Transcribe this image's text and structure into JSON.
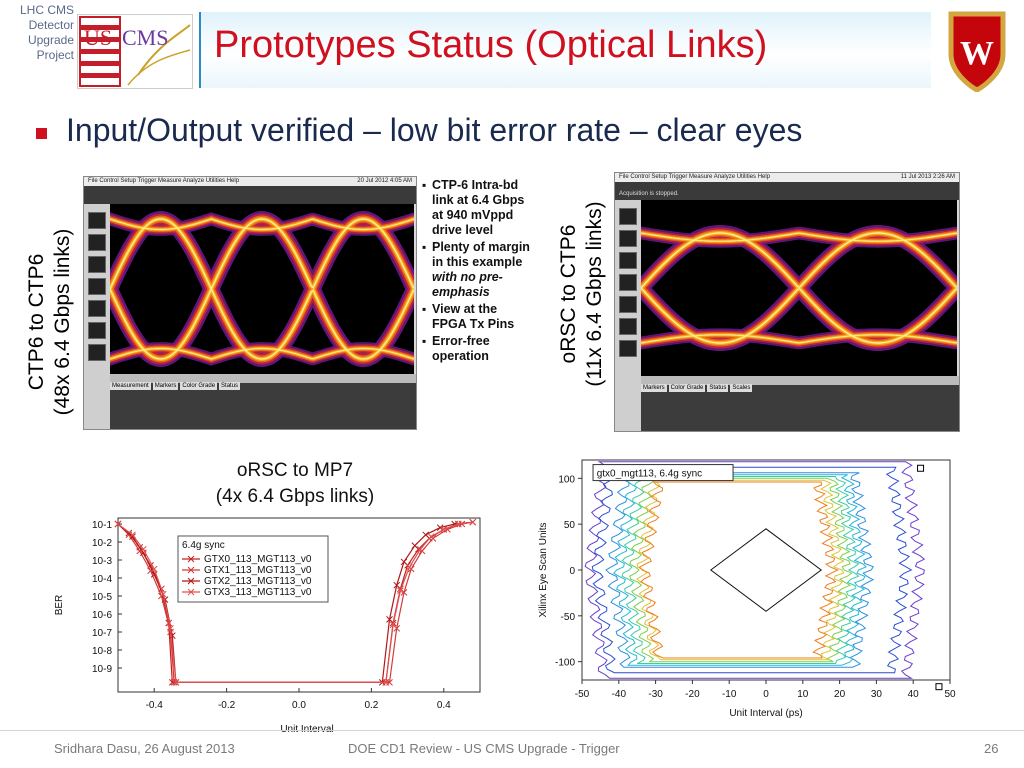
{
  "header": {
    "project_label": "LHC CMS Detector Upgrade Project",
    "logo_left_text_us": "US",
    "logo_left_text_cms": "CMS",
    "logo_right_letter": "W",
    "title": "Prototypes Status (Optical Links)"
  },
  "main_bullet": "Input/Output verified – low bit error rate – clear eyes",
  "ctp6": {
    "label_line1": "CTP6 to CTP6",
    "label_line2": "(48x 6.4 Gbps links)",
    "scope_menu": "File  Control  Setup  Trigger  Measure  Analyze  Utilities  Help",
    "scope_date": "20 Jul 2012  4:05 AM",
    "bullets": [
      "CTP-6 Intra-bd link at 6.4 Gbps at 940 mVppd drive level",
      "Plenty of margin in this example",
      "View at the FPGA Tx Pins",
      "Error-free operation"
    ],
    "bullet2_italic": "with no pre-emphasis"
  },
  "orsc": {
    "label_line1": "oRSC to CTP6",
    "label_line2": "(11x 6.4 Gbps links)",
    "scope_menu": "File  Control  Setup  Trigger  Measure  Analyze  Utilities  Help",
    "scope_date": "11 Jul 2013  2:26 AM",
    "scope_status": "Acquisition is stopped."
  },
  "mp7": {
    "caption_line1": "oRSC to MP7",
    "caption_line2": "(4x 6.4 Gbps links)",
    "chart_data": {
      "type": "line",
      "xlabel": "Unit Interval",
      "ylabel": "BER",
      "y_scale": "log",
      "xlim": [
        -0.5,
        0.5
      ],
      "x_ticks": [
        "-0.4",
        "-0.2",
        "0.0",
        "0.2",
        "0.4"
      ],
      "y_ticks": [
        "10-1",
        "10-2",
        "10-3",
        "10-4",
        "10-5",
        "10-6",
        "10-7",
        "10-8",
        "10-9"
      ],
      "legend_title": "6.4g sync",
      "series": [
        {
          "name": "GTX0_113_MGT113_v0",
          "x": [
            -0.5,
            -0.47,
            -0.44,
            -0.41,
            -0.38,
            -0.36,
            -0.35,
            0.24,
            0.26,
            0.28,
            0.3,
            0.33,
            0.36,
            0.4,
            0.44,
            0.48
          ],
          "y": [
            -1,
            -1.5,
            -2.3,
            -3.3,
            -4.6,
            -6.5,
            -9.8,
            -9.8,
            -6.5,
            -4.6,
            -3.3,
            -2.4,
            -1.8,
            -1.3,
            -1,
            -0.9
          ]
        },
        {
          "name": "GTX1_113_MGT113_v0",
          "x": [
            -0.5,
            -0.47,
            -0.44,
            -0.41,
            -0.38,
            -0.355,
            -0.345,
            0.25,
            0.27,
            0.29,
            0.31,
            0.34,
            0.37,
            0.41,
            0.45,
            0.48
          ],
          "y": [
            -1,
            -1.6,
            -2.5,
            -3.6,
            -5,
            -7,
            -9.8,
            -9.8,
            -6.8,
            -4.8,
            -3.5,
            -2.5,
            -1.8,
            -1.3,
            -1,
            -0.9
          ]
        },
        {
          "name": "GTX2_113_MGT113_v0",
          "x": [
            -0.5,
            -0.46,
            -0.43,
            -0.4,
            -0.37,
            -0.35,
            -0.34,
            0.23,
            0.25,
            0.27,
            0.29,
            0.32,
            0.35,
            0.39,
            0.43,
            0.48
          ],
          "y": [
            -1,
            -1.7,
            -2.6,
            -3.8,
            -5.2,
            -7.2,
            -9.8,
            -9.8,
            -6.3,
            -4.4,
            -3.1,
            -2.2,
            -1.6,
            -1.2,
            -1,
            -0.9
          ]
        },
        {
          "name": "GTX3_113_MGT113_v0",
          "x": [
            -0.5,
            -0.46,
            -0.43,
            -0.4,
            -0.375,
            -0.355,
            -0.34,
            0.24,
            0.26,
            0.28,
            0.305,
            0.335,
            0.365,
            0.4,
            0.44,
            0.48
          ],
          "y": [
            -1,
            -1.6,
            -2.4,
            -3.5,
            -4.9,
            -6.8,
            -9.8,
            -9.8,
            -6.6,
            -4.7,
            -3.4,
            -2.4,
            -1.7,
            -1.3,
            -1,
            -0.9
          ]
        }
      ]
    }
  },
  "eyescan": {
    "chart_data": {
      "type": "line",
      "legend_title": "gtx0_mgt113, 6.4g sync",
      "xlabel": "Unit Interval (ps)",
      "ylabel": "Xilinx Eye Scan Units",
      "xlim": [
        -50,
        50
      ],
      "ylim": [
        -120,
        120
      ],
      "x_ticks": [
        "-50",
        "-40",
        "-30",
        "-20",
        "-10",
        "0",
        "10",
        "20",
        "30",
        "40",
        "50"
      ],
      "y_ticks": [
        "100",
        "50",
        "0",
        "-50",
        "-100"
      ],
      "contours": [
        {
          "color": "#f07d1a",
          "halfwidth": [
            -33,
            18
          ],
          "height": 96
        },
        {
          "color": "#e0c13a",
          "halfwidth": [
            -34,
            20
          ],
          "height": 98
        },
        {
          "color": "#7bcf4a",
          "halfwidth": [
            -36,
            22
          ],
          "height": 100
        },
        {
          "color": "#3fcba0",
          "halfwidth": [
            -38,
            24
          ],
          "height": 102
        },
        {
          "color": "#26b7d6",
          "halfwidth": [
            -40,
            26
          ],
          "height": 104
        },
        {
          "color": "#2d8fe0",
          "halfwidth": [
            -42,
            28
          ],
          "height": 106
        },
        {
          "color": "#2a4fd2",
          "halfwidth": [
            -46,
            38
          ],
          "height": 112
        },
        {
          "color": "#6a3fd0",
          "halfwidth": [
            -48,
            42
          ],
          "height": 118
        }
      ],
      "mask": {
        "x": [
          -15,
          0,
          15,
          0
        ],
        "y": [
          0,
          45,
          0,
          -45
        ]
      }
    }
  },
  "footer": {
    "author": "Sridhara Dasu, 26 August 2013",
    "center": "DOE CD1 Review - US CMS Upgrade - Trigger",
    "page": "26"
  },
  "colors": {
    "title": "#d0101f",
    "bullet_text": "#1a2a4f",
    "accent_blue": "#2a8bc6"
  }
}
